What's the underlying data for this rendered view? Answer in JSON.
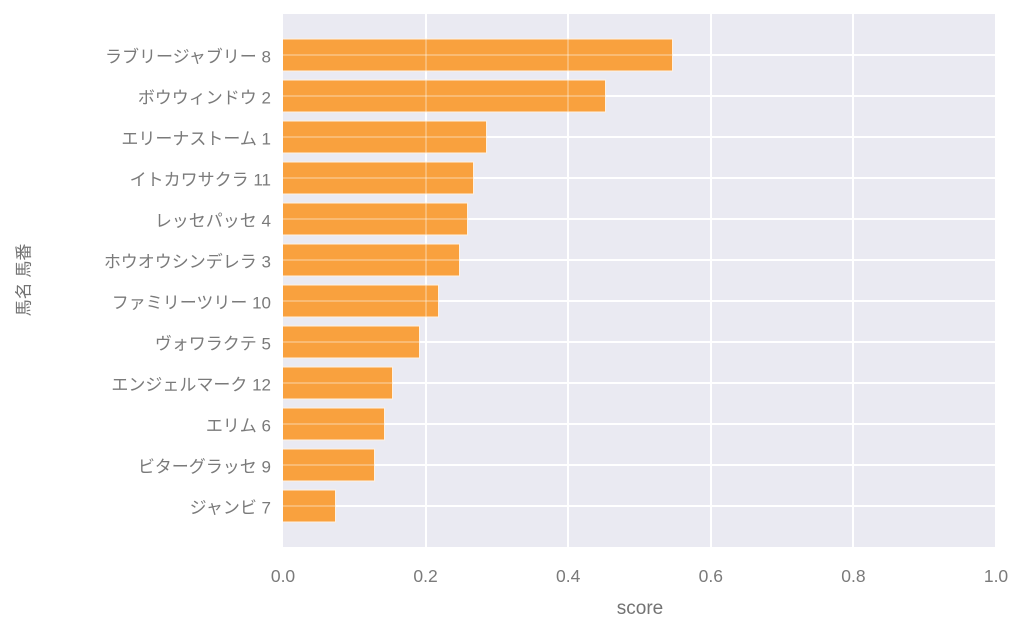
{
  "figure": {
    "background": "#ffffff"
  },
  "chart_data": {
    "type": "bar",
    "orientation": "horizontal",
    "title": "",
    "xlabel": "score",
    "ylabel": "馬名 馬番",
    "categories": [
      "ラブリージャブリー 8",
      "ボウウィンドウ 2",
      "エリーナストーム 1",
      "イトカワサクラ 11",
      "レッセパッセ 4",
      "ホウオウシンデレラ 3",
      "ファミリーツリー 10",
      "ヴォワラクテ 5",
      "エンジェルマーク 12",
      "エリム 6",
      "ビターグラッセ 9",
      "ジャンビ 7"
    ],
    "values": [
      0.547,
      0.453,
      0.286,
      0.268,
      0.259,
      0.248,
      0.219,
      0.192,
      0.154,
      0.143,
      0.129,
      0.074
    ],
    "xlim": [
      0.0,
      1.0
    ],
    "xticks": [
      0.0,
      0.2,
      0.4,
      0.6,
      0.8,
      1.0
    ],
    "xtick_labels": [
      "0.0",
      "0.2",
      "0.4",
      "0.6",
      "0.8",
      "1.0"
    ],
    "grid": true,
    "legend": null,
    "colors": {
      "bar": "#f9a13e",
      "plot_background": "#eaeaf2",
      "gridline": "#ffffff",
      "tick_label": "#7a7a7a",
      "axis_label": "#737373"
    }
  }
}
